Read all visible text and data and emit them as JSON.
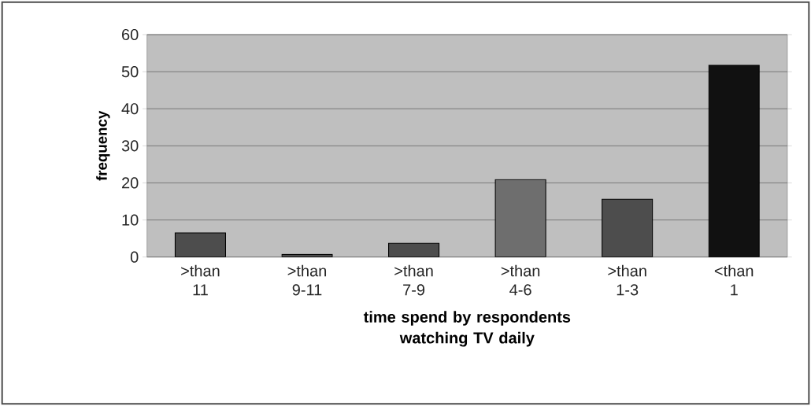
{
  "chart_data": {
    "type": "bar",
    "categories": [
      ">than 11",
      ">than 9-11",
      ">than 7-9",
      ">than 4-6",
      ">than 1-3",
      "<than 1"
    ],
    "values": [
      6.5,
      0.7,
      3.7,
      20.9,
      15.6,
      51.7
    ],
    "colors": [
      "#4d4d4d",
      "#4d4d4d",
      "#4d4d4d",
      "#6e6e6e",
      "#4d4d4d",
      "#111111"
    ],
    "xlabel": "time spend by respondents watching TV daily",
    "ylabel": "frequency",
    "ylim": [
      0,
      60
    ],
    "yticks": [
      0,
      10,
      20,
      30,
      40,
      50,
      60
    ],
    "grid": "y"
  }
}
